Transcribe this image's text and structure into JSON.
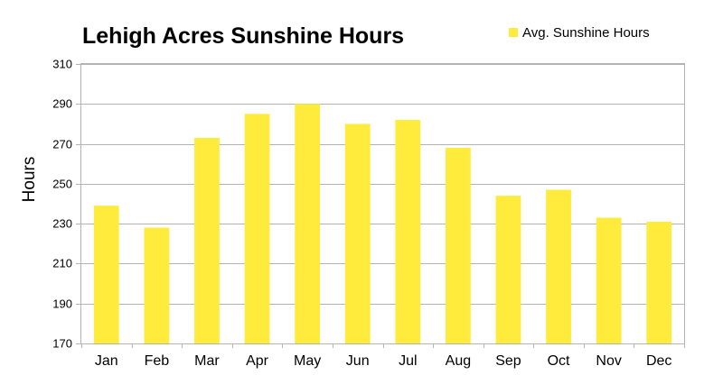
{
  "chart_data": {
    "type": "bar",
    "title": "Lehigh Acres Sunshine Hours",
    "ylabel": "Hours",
    "xlabel": "",
    "categories": [
      "Jan",
      "Feb",
      "Mar",
      "Apr",
      "May",
      "Jun",
      "Jul",
      "Aug",
      "Sep",
      "Oct",
      "Nov",
      "Dec"
    ],
    "series": [
      {
        "name": "Avg. Sunshine Hours",
        "values": [
          239,
          228,
          273,
          285,
          290,
          280,
          282,
          268,
          244,
          247,
          233,
          231
        ]
      }
    ],
    "ylim": [
      170,
      310
    ],
    "yticks": [
      170,
      190,
      210,
      230,
      250,
      270,
      290,
      310
    ],
    "grid": true,
    "legend_position": "top-right",
    "bar_color": "#ffeb3b"
  }
}
